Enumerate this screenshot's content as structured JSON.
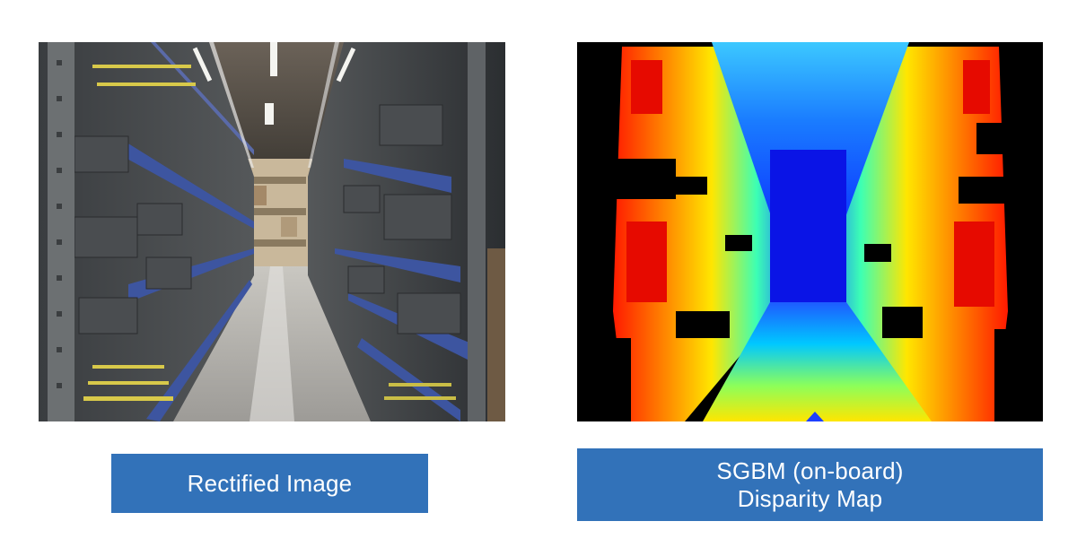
{
  "captions": {
    "left": "Rectified Image",
    "right_line1": "SGBM (on-board)",
    "right_line2": "Disparity Map"
  },
  "colors": {
    "caption_bg": "#3272b9",
    "caption_text": "#ffffff",
    "page_bg": "#ffffff"
  },
  "images": {
    "left": "warehouse-aisle-photo",
    "right": "disparity-heatmap"
  }
}
